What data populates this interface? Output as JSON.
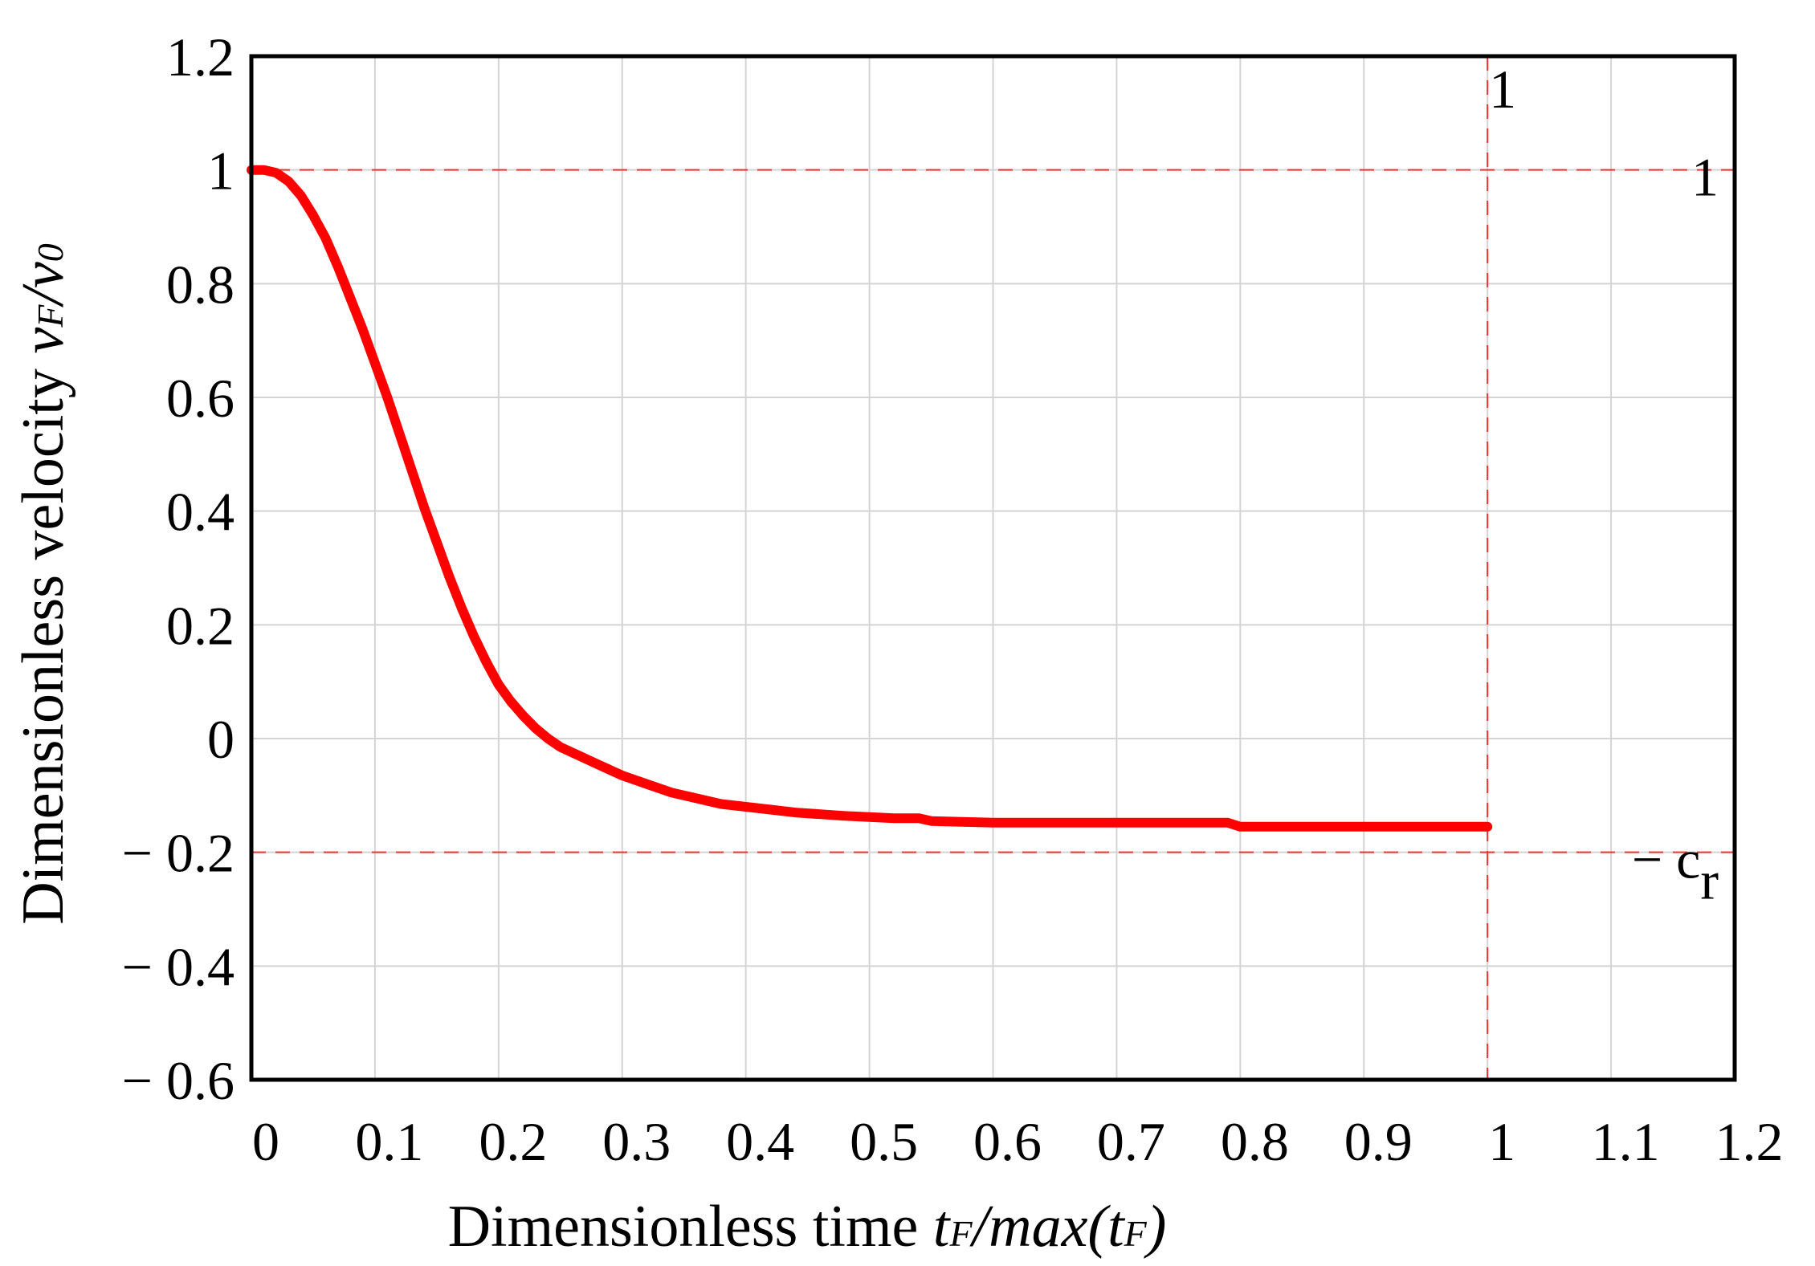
{
  "chart_data": {
    "type": "line",
    "title": "",
    "xlabel": {
      "prefix": "Dimensionless time ",
      "var1": "t",
      "sub1": "F",
      "mid": "/",
      "var2": "max",
      "paren_open": "(",
      "var3": "t",
      "sub3": "F",
      "paren_close": ")"
    },
    "ylabel": {
      "prefix": "Dimensionless velocity ",
      "var1": "v",
      "sub1": "F",
      "mid": "/",
      "var2": "v",
      "sub2": "0"
    },
    "xlim": [
      0,
      1.2
    ],
    "ylim": [
      -0.6,
      1.2
    ],
    "xticks": [
      0,
      0.1,
      0.2,
      0.3,
      0.4,
      0.5,
      0.6,
      0.7,
      0.8,
      0.9,
      1,
      1.1,
      1.2
    ],
    "xtick_labels": [
      "0",
      "0.1",
      "0.2",
      "0.3",
      "0.4",
      "0.5",
      "0.6",
      "0.7",
      "0.8",
      "0.9",
      "1",
      "1.1",
      "1.2"
    ],
    "yticks": [
      1.2,
      1,
      0.8,
      0.6,
      0.4,
      0.2,
      0,
      -0.2,
      -0.4,
      -0.6
    ],
    "ytick_labels": [
      "1.2",
      "1",
      "0.8",
      "0.6",
      "0.4",
      "0.2",
      "0",
      "− 0.2",
      "− 0.4",
      "− 0.6"
    ],
    "grid": true,
    "series": [
      {
        "color": "#ff0000",
        "x": [
          0,
          0.01,
          0.02,
          0.03,
          0.04,
          0.05,
          0.06,
          0.07,
          0.08,
          0.09,
          0.1,
          0.11,
          0.12,
          0.13,
          0.14,
          0.15,
          0.16,
          0.17,
          0.18,
          0.19,
          0.2,
          0.21,
          0.22,
          0.23,
          0.24,
          0.25,
          0.26,
          0.27,
          0.28,
          0.29,
          0.3,
          0.32,
          0.34,
          0.36,
          0.38,
          0.4,
          0.42,
          0.44,
          0.46,
          0.48,
          0.5,
          0.52,
          0.54,
          0.55,
          0.6,
          0.65,
          0.7,
          0.75,
          0.79,
          0.8,
          0.85,
          0.9,
          0.95,
          1.0
        ],
        "y": [
          1.0,
          1.0,
          0.995,
          0.98,
          0.955,
          0.92,
          0.88,
          0.83,
          0.775,
          0.72,
          0.66,
          0.6,
          0.535,
          0.47,
          0.405,
          0.345,
          0.285,
          0.23,
          0.18,
          0.135,
          0.095,
          0.065,
          0.04,
          0.018,
          0.0,
          -0.015,
          -0.025,
          -0.035,
          -0.045,
          -0.055,
          -0.065,
          -0.08,
          -0.095,
          -0.105,
          -0.115,
          -0.12,
          -0.125,
          -0.13,
          -0.133,
          -0.136,
          -0.138,
          -0.14,
          -0.14,
          -0.145,
          -0.148,
          -0.148,
          -0.148,
          -0.148,
          -0.148,
          -0.155,
          -0.155,
          -0.155,
          -0.155,
          -0.155
        ]
      }
    ],
    "reference_lines": [
      {
        "orientation": "horizontal",
        "value": 1,
        "label": "1",
        "color": "#ee3333"
      },
      {
        "orientation": "horizontal",
        "value": -0.2,
        "label_main": "− c",
        "label_sub": "r",
        "color": "#ee3333"
      },
      {
        "orientation": "vertical",
        "value": 1,
        "label": "1",
        "color": "#ee3333"
      }
    ]
  }
}
